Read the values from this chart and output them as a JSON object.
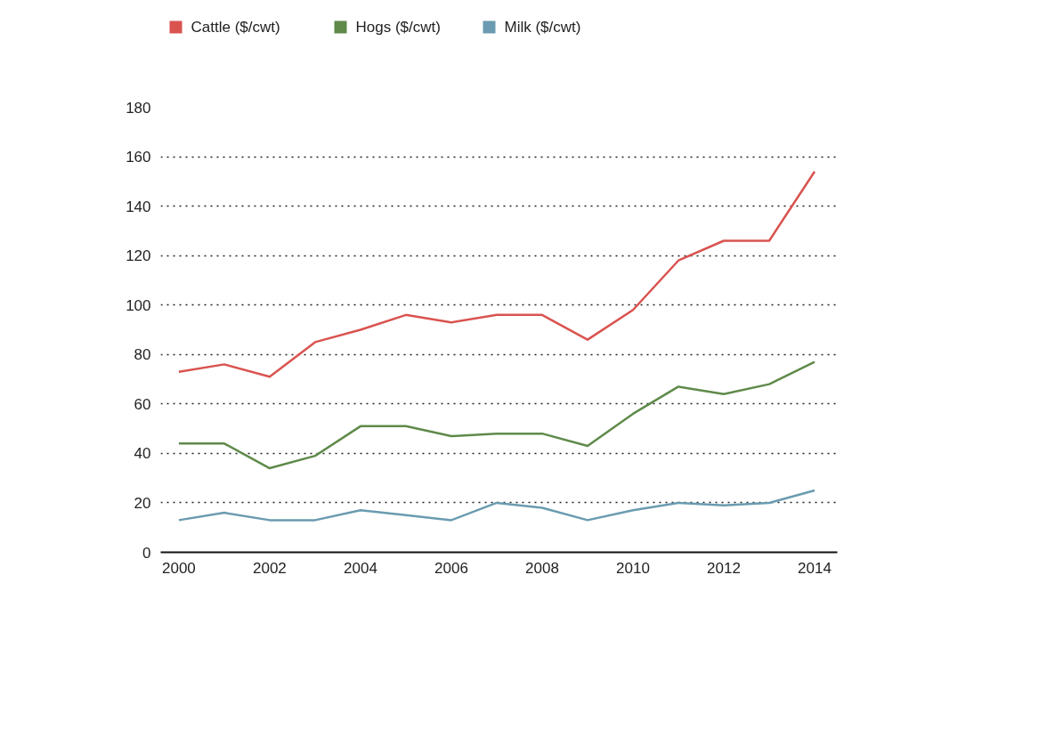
{
  "chart_data": {
    "type": "line",
    "x": [
      2000,
      2001,
      2002,
      2003,
      2004,
      2005,
      2006,
      2007,
      2008,
      2009,
      2010,
      2011,
      2012,
      2013,
      2014
    ],
    "series": [
      {
        "name": "Cattle ($/cwt)",
        "color": "#d9534f",
        "values": [
          73,
          76,
          71,
          85,
          90,
          96,
          93,
          96,
          96,
          86,
          98,
          118,
          126,
          126,
          154
        ]
      },
      {
        "name": "Hogs ($/cwt)",
        "color": "#5f8a4a",
        "values": [
          44,
          44,
          34,
          39,
          51,
          51,
          47,
          48,
          48,
          43,
          56,
          67,
          64,
          68,
          77
        ]
      },
      {
        "name": "Milk ($/cwt)",
        "color": "#6a9bb0",
        "values": [
          13,
          16,
          13,
          13,
          17,
          15,
          13,
          20,
          18,
          13,
          17,
          20,
          19,
          20,
          25
        ]
      }
    ],
    "xlim": [
      1999.6,
      2014.5
    ],
    "xticks": [
      2000,
      2002,
      2004,
      2006,
      2008,
      2010,
      2012,
      2014
    ],
    "ylim": [
      0,
      180
    ],
    "yticks": [
      0,
      20,
      40,
      60,
      80,
      100,
      120,
      140,
      160,
      180
    ],
    "grid": "y",
    "legend": "top left",
    "marker": "none",
    "line_style": "solid"
  }
}
